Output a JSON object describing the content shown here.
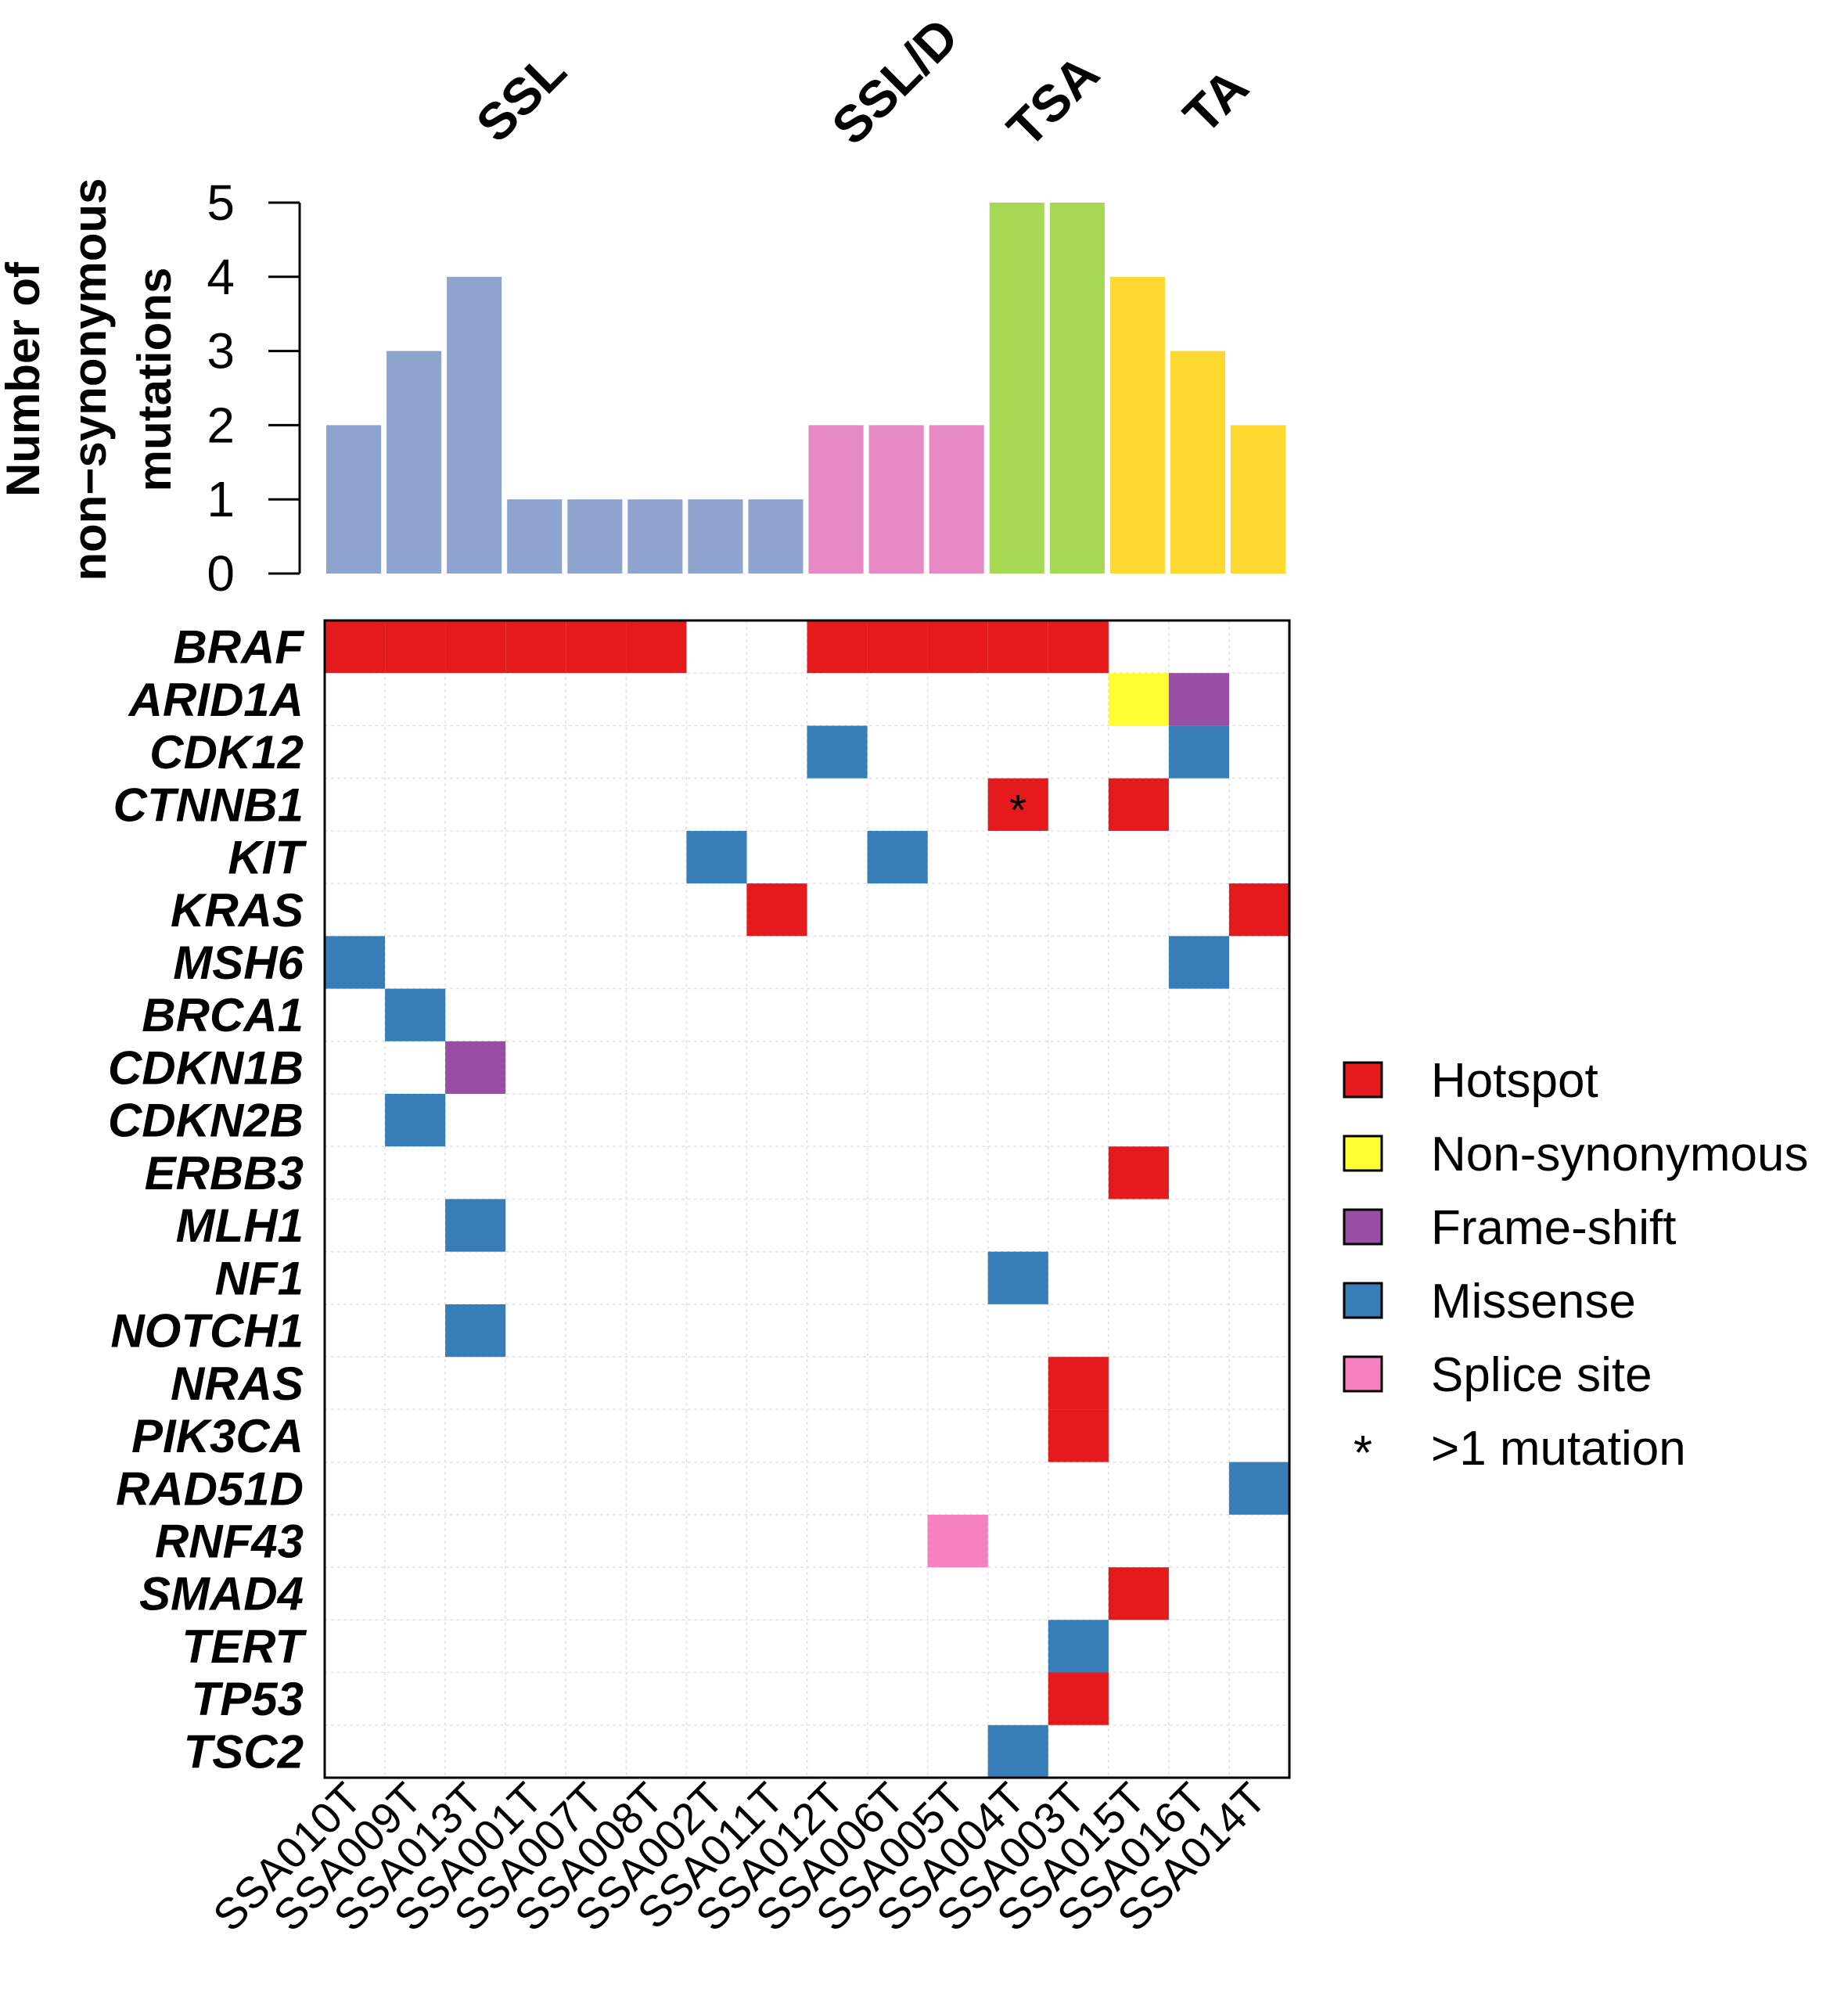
{
  "chart_data": {
    "type": "bar",
    "title": "",
    "ylabel_line1": "Number of",
    "ylabel_line2": "non−synonymous",
    "ylabel_line3": "mutations",
    "ylim": [
      0,
      5
    ],
    "yticks": [
      "0",
      "1",
      "2",
      "3",
      "4",
      "5"
    ],
    "categories": [
      "SSA010T",
      "SSA009T",
      "SSA013T",
      "SSA001T",
      "SSA007T",
      "SSA008T",
      "SSA002T",
      "SSA011T",
      "SSA012T",
      "SSA006T",
      "SSA005T",
      "SSA004T",
      "SSA003T",
      "SSA015T",
      "SSA016T",
      "SSA014T"
    ],
    "values": [
      2,
      3,
      4,
      1,
      1,
      1,
      1,
      1,
      2,
      2,
      2,
      5,
      5,
      4,
      3,
      2
    ],
    "groups": [
      {
        "name": "SSL",
        "start": 0,
        "end": 7,
        "color": "#8FA3CF"
      },
      {
        "name": "SSL/D",
        "start": 8,
        "end": 10,
        "color": "#E78AC3"
      },
      {
        "name": "TSA",
        "start": 11,
        "end": 12,
        "color": "#A6D854"
      },
      {
        "name": "TA",
        "start": 13,
        "end": 15,
        "color": "#FFD92F"
      }
    ],
    "genes": [
      "BRAF",
      "ARID1A",
      "CDK12",
      "CTNNB1",
      "KIT",
      "KRAS",
      "MSH6",
      "BRCA1",
      "CDKN1B",
      "CDKN2B",
      "ERBB3",
      "MLH1",
      "NF1",
      "NOTCH1",
      "NRAS",
      "PIK3CA",
      "RAD51D",
      "RNF43",
      "SMAD4",
      "TERT",
      "TP53",
      "TSC2"
    ],
    "mutation_types": [
      {
        "key": "hotspot",
        "label": "Hotspot",
        "color": "#E41A1C"
      },
      {
        "key": "nonsyn",
        "label": "Non-synonymous",
        "color": "#FFFF33"
      },
      {
        "key": "frameshift",
        "label": "Frame-shift",
        "color": "#984EA3"
      },
      {
        "key": "missense",
        "label": "Missense",
        "color": "#377EB8"
      },
      {
        "key": "splice",
        "label": "Splice site",
        "color": "#F781BF"
      }
    ],
    "multi_label": ">1 mutation",
    "multi_symbol": "*",
    "cells": [
      {
        "gene": "BRAF",
        "sample": "SSA010T",
        "type": "hotspot"
      },
      {
        "gene": "BRAF",
        "sample": "SSA009T",
        "type": "hotspot"
      },
      {
        "gene": "BRAF",
        "sample": "SSA013T",
        "type": "hotspot"
      },
      {
        "gene": "BRAF",
        "sample": "SSA001T",
        "type": "hotspot"
      },
      {
        "gene": "BRAF",
        "sample": "SSA007T",
        "type": "hotspot"
      },
      {
        "gene": "BRAF",
        "sample": "SSA008T",
        "type": "hotspot"
      },
      {
        "gene": "BRAF",
        "sample": "SSA012T",
        "type": "hotspot"
      },
      {
        "gene": "BRAF",
        "sample": "SSA006T",
        "type": "hotspot"
      },
      {
        "gene": "BRAF",
        "sample": "SSA005T",
        "type": "hotspot"
      },
      {
        "gene": "BRAF",
        "sample": "SSA004T",
        "type": "hotspot"
      },
      {
        "gene": "BRAF",
        "sample": "SSA003T",
        "type": "hotspot"
      },
      {
        "gene": "ARID1A",
        "sample": "SSA015T",
        "type": "nonsyn"
      },
      {
        "gene": "ARID1A",
        "sample": "SSA016T",
        "type": "frameshift"
      },
      {
        "gene": "CDK12",
        "sample": "SSA012T",
        "type": "missense"
      },
      {
        "gene": "CDK12",
        "sample": "SSA016T",
        "type": "missense"
      },
      {
        "gene": "CTNNB1",
        "sample": "SSA004T",
        "type": "hotspot",
        "multi": true
      },
      {
        "gene": "CTNNB1",
        "sample": "SSA015T",
        "type": "hotspot"
      },
      {
        "gene": "KIT",
        "sample": "SSA002T",
        "type": "missense"
      },
      {
        "gene": "KIT",
        "sample": "SSA006T",
        "type": "missense"
      },
      {
        "gene": "KRAS",
        "sample": "SSA011T",
        "type": "hotspot"
      },
      {
        "gene": "KRAS",
        "sample": "SSA014T",
        "type": "hotspot"
      },
      {
        "gene": "MSH6",
        "sample": "SSA010T",
        "type": "missense"
      },
      {
        "gene": "MSH6",
        "sample": "SSA016T",
        "type": "missense"
      },
      {
        "gene": "BRCA1",
        "sample": "SSA009T",
        "type": "missense"
      },
      {
        "gene": "CDKN1B",
        "sample": "SSA013T",
        "type": "frameshift"
      },
      {
        "gene": "CDKN2B",
        "sample": "SSA009T",
        "type": "missense"
      },
      {
        "gene": "ERBB3",
        "sample": "SSA015T",
        "type": "hotspot"
      },
      {
        "gene": "MLH1",
        "sample": "SSA013T",
        "type": "missense"
      },
      {
        "gene": "NF1",
        "sample": "SSA004T",
        "type": "missense"
      },
      {
        "gene": "NOTCH1",
        "sample": "SSA013T",
        "type": "missense"
      },
      {
        "gene": "NRAS",
        "sample": "SSA003T",
        "type": "hotspot"
      },
      {
        "gene": "PIK3CA",
        "sample": "SSA003T",
        "type": "hotspot"
      },
      {
        "gene": "RAD51D",
        "sample": "SSA014T",
        "type": "missense"
      },
      {
        "gene": "RNF43",
        "sample": "SSA005T",
        "type": "splice"
      },
      {
        "gene": "SMAD4",
        "sample": "SSA015T",
        "type": "hotspot"
      },
      {
        "gene": "TERT",
        "sample": "SSA003T",
        "type": "missense"
      },
      {
        "gene": "TP53",
        "sample": "SSA003T",
        "type": "hotspot"
      },
      {
        "gene": "TSC2",
        "sample": "SSA004T",
        "type": "missense"
      }
    ]
  }
}
